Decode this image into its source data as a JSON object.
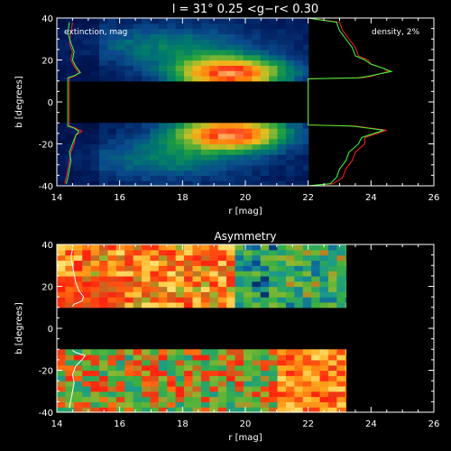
{
  "colors": {
    "background": "#000000",
    "axes": "#ffffff",
    "curve_red": "#ff2020",
    "curve_green": "#40ff40",
    "curve_white": "#ffffff",
    "colormap": [
      "#00001e",
      "#001a5a",
      "#0a4a8c",
      "#007a6e",
      "#20a040",
      "#8ab830",
      "#e8c020",
      "#ff8a10",
      "#ff3010",
      "#ffff90"
    ],
    "asym_colormap": [
      "#00104a",
      "#0a5aa0",
      "#1a9a8a",
      "#3ab040",
      "#90b830",
      "#ff2010",
      "#ff7010",
      "#ffb020",
      "#ffe070"
    ]
  },
  "chart_data": [
    {
      "type": "heatmap",
      "title": "l = 31°    0.25 <g−r< 0.30",
      "xlabel": "r [mag]",
      "ylabel": "b [degrees]",
      "xlim": [
        14,
        26
      ],
      "ylim": [
        -40,
        40
      ],
      "xticks": [
        "14",
        "16",
        "18",
        "20",
        "22",
        "24",
        "26"
      ],
      "yticks": [
        "-40",
        "-20",
        "0",
        "20",
        "40"
      ],
      "annotations": [
        "extinction, mag",
        "density, 2%"
      ],
      "data_extent": {
        "x": [
          14,
          22
        ],
        "b_north": [
          10,
          40
        ],
        "b_south": [
          -40,
          -10
        ]
      },
      "north_peak": {
        "r": 19.5,
        "b": 14
      },
      "south_peak": {
        "r": 19.5,
        "b": -15
      },
      "extinction_curve_x0": 14.3,
      "series": [
        {
          "color": "red",
          "points": [
            [
              14.5,
              38
            ],
            [
              14.45,
              33
            ],
            [
              14.4,
              28
            ],
            [
              14.5,
              24
            ],
            [
              14.45,
              20
            ],
            [
              14.55,
              17
            ],
            [
              14.7,
              14
            ],
            [
              14.6,
              12.5
            ],
            [
              14.4,
              11.5
            ],
            [
              14.4,
              -11.5
            ],
            [
              14.6,
              -12.5
            ],
            [
              14.8,
              -14
            ],
            [
              14.6,
              -16
            ],
            [
              14.55,
              -20
            ],
            [
              14.45,
              -24
            ],
            [
              14.4,
              -28
            ],
            [
              14.35,
              -32
            ],
            [
              14.3,
              -36
            ],
            [
              14.25,
              -39
            ]
          ]
        },
        {
          "color": "green",
          "points": [
            [
              14.4,
              38
            ],
            [
              14.35,
              33
            ],
            [
              14.45,
              28
            ],
            [
              14.55,
              24
            ],
            [
              14.5,
              20
            ],
            [
              14.6,
              17
            ],
            [
              14.75,
              14
            ],
            [
              14.55,
              12.5
            ],
            [
              14.35,
              11.5
            ],
            [
              14.35,
              -11.5
            ],
            [
              14.55,
              -12.5
            ],
            [
              14.7,
              -14
            ],
            [
              14.6,
              -16
            ],
            [
              14.5,
              -20
            ],
            [
              14.4,
              -24
            ],
            [
              14.45,
              -28
            ],
            [
              14.4,
              -32
            ],
            [
              14.35,
              -36
            ],
            [
              14.3,
              -39
            ]
          ]
        },
        {
          "color": "red",
          "points": [
            [
              22,
              40
            ],
            [
              23.0,
              38
            ],
            [
              23.1,
              34
            ],
            [
              23.3,
              30
            ],
            [
              23.5,
              26
            ],
            [
              23.6,
              22
            ],
            [
              23.9,
              20
            ],
            [
              24.0,
              18
            ],
            [
              24.4,
              16
            ],
            [
              24.55,
              14.5
            ],
            [
              24.3,
              13.5
            ],
            [
              24.0,
              12.2
            ],
            [
              23.7,
              11.5
            ],
            [
              22,
              11
            ],
            [
              22,
              -11
            ],
            [
              23.5,
              -11.5
            ],
            [
              24.0,
              -12.5
            ],
            [
              24.5,
              -13.5
            ],
            [
              24.2,
              -15
            ],
            [
              23.8,
              -17
            ],
            [
              23.8,
              -20
            ],
            [
              23.5,
              -24
            ],
            [
              23.4,
              -28
            ],
            [
              23.2,
              -32
            ],
            [
              23.1,
              -36
            ],
            [
              22.8,
              -39
            ],
            [
              22,
              -40
            ]
          ]
        },
        {
          "color": "green",
          "points": [
            [
              22,
              40
            ],
            [
              22.9,
              38
            ],
            [
              23.0,
              34
            ],
            [
              23.2,
              30
            ],
            [
              23.4,
              26
            ],
            [
              23.5,
              22
            ],
            [
              23.8,
              20
            ],
            [
              24.0,
              18
            ],
            [
              24.4,
              16
            ],
            [
              24.65,
              14.5
            ],
            [
              24.3,
              13.5
            ],
            [
              23.9,
              12.2
            ],
            [
              23.6,
              11.5
            ],
            [
              22,
              11
            ],
            [
              22,
              -11
            ],
            [
              23.4,
              -11.5
            ],
            [
              23.9,
              -12.5
            ],
            [
              24.4,
              -13.5
            ],
            [
              24.1,
              -15
            ],
            [
              23.7,
              -17
            ],
            [
              23.6,
              -20
            ],
            [
              23.3,
              -24
            ],
            [
              23.2,
              -28
            ],
            [
              23.0,
              -32
            ],
            [
              22.9,
              -36
            ],
            [
              22.7,
              -39
            ],
            [
              22,
              -40
            ]
          ]
        }
      ]
    },
    {
      "type": "heatmap",
      "title": "Asymmetry",
      "xlabel": "r [mag]",
      "ylabel": "b [degrees]",
      "xlim": [
        14,
        26
      ],
      "ylim": [
        -40,
        40
      ],
      "xticks": [
        "14",
        "16",
        "18",
        "20",
        "22",
        "24",
        "26"
      ],
      "yticks": [
        "-40",
        "-20",
        "0",
        "20",
        "40"
      ],
      "data_extent": {
        "x": [
          14,
          23.2
        ],
        "b_north": [
          10,
          40
        ],
        "b_south": [
          -40,
          -10
        ]
      },
      "series": [
        {
          "color": "white",
          "points": [
            [
              14.5,
              38
            ],
            [
              14.45,
              34
            ],
            [
              14.5,
              30
            ],
            [
              14.55,
              26
            ],
            [
              14.6,
              22
            ],
            [
              14.7,
              18
            ],
            [
              14.85,
              15
            ],
            [
              14.8,
              13
            ],
            [
              14.55,
              11.5
            ],
            [
              14.5,
              10.5
            ]
          ]
        },
        {
          "color": "white",
          "points": [
            [
              14.5,
              -10.5
            ],
            [
              14.6,
              -11.5
            ],
            [
              14.9,
              -13
            ],
            [
              14.8,
              -15
            ],
            [
              14.6,
              -18
            ],
            [
              14.5,
              -22
            ],
            [
              14.55,
              -26
            ],
            [
              14.5,
              -30
            ],
            [
              14.45,
              -34
            ],
            [
              14.4,
              -38
            ]
          ]
        }
      ]
    }
  ]
}
